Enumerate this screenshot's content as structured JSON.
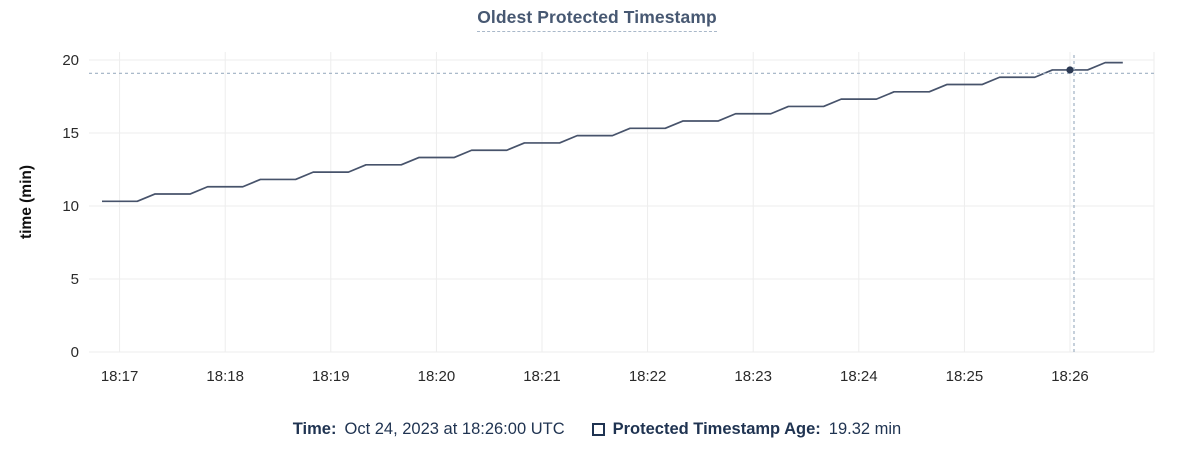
{
  "title": "Oldest Protected Timestamp",
  "chart_data": {
    "type": "line",
    "title": "Oldest Protected Timestamp",
    "xlabel": "",
    "ylabel": "time (min)",
    "ylim": [
      0,
      20
    ],
    "y_ticks": [
      0,
      5,
      10,
      15,
      20
    ],
    "x_tick_labels": [
      "18:17",
      "18:18",
      "18:19",
      "18:20",
      "18:21",
      "18:22",
      "18:23",
      "18:24",
      "18:25",
      "18:26"
    ],
    "x_unit": "seconds after 18:17:00",
    "y_unit": "minutes",
    "grid": true,
    "legend_position": "bottom",
    "series": [
      {
        "name": "Protected Timestamp Age",
        "unit": "min",
        "points": [
          [
            -10,
            10.32
          ],
          [
            10,
            10.32
          ],
          [
            20,
            10.82
          ],
          [
            40,
            10.82
          ],
          [
            50,
            11.32
          ],
          [
            70,
            11.32
          ],
          [
            80,
            11.82
          ],
          [
            100,
            11.82
          ],
          [
            110,
            12.32
          ],
          [
            130,
            12.32
          ],
          [
            140,
            12.82
          ],
          [
            160,
            12.82
          ],
          [
            170,
            13.32
          ],
          [
            190,
            13.32
          ],
          [
            200,
            13.82
          ],
          [
            220,
            13.82
          ],
          [
            230,
            14.32
          ],
          [
            250,
            14.32
          ],
          [
            260,
            14.82
          ],
          [
            280,
            14.82
          ],
          [
            290,
            15.32
          ],
          [
            310,
            15.32
          ],
          [
            320,
            15.82
          ],
          [
            340,
            15.82
          ],
          [
            350,
            16.32
          ],
          [
            370,
            16.32
          ],
          [
            380,
            16.82
          ],
          [
            400,
            16.82
          ],
          [
            410,
            17.32
          ],
          [
            430,
            17.32
          ],
          [
            440,
            17.82
          ],
          [
            460,
            17.82
          ],
          [
            470,
            18.32
          ],
          [
            490,
            18.32
          ],
          [
            500,
            18.82
          ],
          [
            520,
            18.82
          ],
          [
            530,
            19.32
          ],
          [
            550,
            19.32
          ],
          [
            560,
            19.82
          ],
          [
            570,
            19.82
          ]
        ]
      }
    ],
    "hover": {
      "time_label": "18:26:00",
      "seconds": 540,
      "value": 19.32
    }
  },
  "footer": {
    "time_label": "Time:",
    "time_value": "Oct 24, 2023 at 18:26:00 UTC",
    "series_label": "Protected Timestamp Age:",
    "series_value": "19.32 min"
  },
  "colors": {
    "title": "#475872",
    "footer_text": "#1f3351",
    "line": "#47536b",
    "dot": "#2c3a54",
    "crosshair": "#9fb0c3",
    "gridline": "#ededed",
    "tick_label": "#2a2a2a",
    "axis_title": "#0f0f0f"
  }
}
